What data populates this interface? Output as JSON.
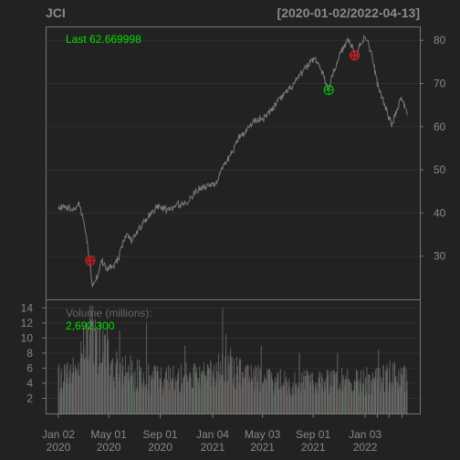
{
  "symbol": "JCI",
  "date_range": "[2020-01-02/2022-04-13]",
  "last_label": "Last 62.669998",
  "volume_label": "Volume (millions):",
  "volume_value": "2,692,300",
  "colors": {
    "background": "#222222",
    "price_line": "#7a7a7a",
    "volume_bar": "#666666",
    "up_marker": "#00c800",
    "down_marker": "#d02020",
    "label_green": "#00e000",
    "axis_text": "#888888"
  },
  "chart_data": [
    {
      "type": "line",
      "title": "JCI",
      "subtitle": "[2020-01-02/2022-04-13]",
      "ylim": [
        20,
        83
      ],
      "yticks": [
        30,
        40,
        50,
        60,
        70,
        80
      ],
      "xticks": [
        {
          "date": "2020-01-02",
          "line1": "Jan 02",
          "line2": "2020"
        },
        {
          "date": "2020-05-01",
          "line1": "May 01",
          "line2": "2020"
        },
        {
          "date": "2020-09-01",
          "line1": "Sep 01",
          "line2": "2020"
        },
        {
          "date": "2021-01-04",
          "line1": "Jan 04",
          "line2": "2021"
        },
        {
          "date": "2021-05-03",
          "line1": "May 03",
          "line2": "2021"
        },
        {
          "date": "2021-09-01",
          "line1": "Sep 01",
          "line2": "2021"
        },
        {
          "date": "2022-01-03",
          "line1": "Jan 03",
          "line2": "2022"
        }
      ],
      "x_start": "2020-01-02",
      "x_end": "2022-04-13",
      "grid": true,
      "series": [
        {
          "points": [
            [
              "2020-01-02",
              41
            ],
            [
              "2020-01-20",
              41.5
            ],
            [
              "2020-02-05",
              40.5
            ],
            [
              "2020-02-20",
              42.5
            ],
            [
              "2020-03-05",
              37
            ],
            [
              "2020-03-16",
              29
            ],
            [
              "2020-03-23",
              23.5
            ],
            [
              "2020-04-02",
              25
            ],
            [
              "2020-04-15",
              29
            ],
            [
              "2020-04-25",
              27
            ],
            [
              "2020-05-05",
              27.5
            ],
            [
              "2020-05-15",
              28
            ],
            [
              "2020-05-26",
              30
            ],
            [
              "2020-06-10",
              35
            ],
            [
              "2020-06-25",
              33.5
            ],
            [
              "2020-07-10",
              36
            ],
            [
              "2020-07-25",
              38
            ],
            [
              "2020-08-10",
              40
            ],
            [
              "2020-08-25",
              41.5
            ],
            [
              "2020-09-10",
              41
            ],
            [
              "2020-09-25",
              40.5
            ],
            [
              "2020-10-10",
              42
            ],
            [
              "2020-10-25",
              42
            ],
            [
              "2020-11-09",
              43
            ],
            [
              "2020-11-25",
              45
            ],
            [
              "2020-12-10",
              46
            ],
            [
              "2020-12-28",
              46.5
            ],
            [
              "2021-01-12",
              47
            ],
            [
              "2021-01-27",
              50
            ],
            [
              "2021-02-10",
              52.5
            ],
            [
              "2021-02-25",
              55
            ],
            [
              "2021-03-10",
              58
            ],
            [
              "2021-03-25",
              59
            ],
            [
              "2021-04-10",
              61
            ],
            [
              "2021-04-25",
              62
            ],
            [
              "2021-05-10",
              62
            ],
            [
              "2021-05-25",
              64
            ],
            [
              "2021-06-10",
              66
            ],
            [
              "2021-06-25",
              67.5
            ],
            [
              "2021-07-10",
              69
            ],
            [
              "2021-07-25",
              71
            ],
            [
              "2021-08-10",
              73
            ],
            [
              "2021-08-25",
              75
            ],
            [
              "2021-09-05",
              76
            ],
            [
              "2021-09-15",
              74
            ],
            [
              "2021-09-25",
              72
            ],
            [
              "2021-10-01",
              70
            ],
            [
              "2021-10-08",
              68.5
            ],
            [
              "2021-10-20",
              73
            ],
            [
              "2021-11-05",
              77
            ],
            [
              "2021-11-17",
              79
            ],
            [
              "2021-11-25",
              80.5
            ],
            [
              "2021-12-05",
              78
            ],
            [
              "2021-12-12",
              76
            ],
            [
              "2021-12-22",
              79
            ],
            [
              "2022-01-03",
              81
            ],
            [
              "2022-01-12",
              79
            ],
            [
              "2022-01-22",
              75
            ],
            [
              "2022-02-01",
              70
            ],
            [
              "2022-02-12",
              67
            ],
            [
              "2022-02-25",
              63
            ],
            [
              "2022-03-07",
              60.5
            ],
            [
              "2022-03-17",
              63
            ],
            [
              "2022-03-28",
              66.5
            ],
            [
              "2022-04-06",
              65
            ],
            [
              "2022-04-13",
              62.67
            ]
          ]
        }
      ],
      "markers": [
        {
          "date": "2020-03-18",
          "value": 29,
          "kind": "sell"
        },
        {
          "date": "2021-10-08",
          "value": 68.5,
          "kind": "buy"
        },
        {
          "date": "2021-12-09",
          "value": 76.5,
          "kind": "sell"
        }
      ]
    },
    {
      "type": "bar",
      "title": "Volume (millions):",
      "ylim": [
        0,
        15
      ],
      "yticks": [
        2,
        4,
        6,
        8,
        10,
        12,
        14
      ],
      "volume_profile": [
        [
          "2020-01-02",
          4.5
        ],
        [
          "2020-02-20",
          5.5
        ],
        [
          "2020-03-10",
          10
        ],
        [
          "2020-03-25",
          11
        ],
        [
          "2020-04-15",
          8
        ],
        [
          "2020-05-10",
          6
        ],
        [
          "2020-06-10",
          5.5
        ],
        [
          "2020-07-20",
          5
        ],
        [
          "2020-09-01",
          4.5
        ],
        [
          "2020-10-15",
          4.5
        ],
        [
          "2020-12-01",
          5
        ],
        [
          "2021-01-15",
          5.5
        ],
        [
          "2021-02-15",
          6.5
        ],
        [
          "2021-03-15",
          5
        ],
        [
          "2021-05-01",
          4.5
        ],
        [
          "2021-07-01",
          4
        ],
        [
          "2021-09-01",
          4
        ],
        [
          "2021-10-15",
          4.5
        ],
        [
          "2021-12-15",
          4
        ],
        [
          "2022-02-01",
          4.5
        ],
        [
          "2022-03-15",
          5
        ],
        [
          "2022-04-13",
          4.5
        ]
      ],
      "spikes": [
        [
          "2020-03-12",
          12
        ],
        [
          "2020-03-20",
          12.5
        ],
        [
          "2020-04-01",
          11.5
        ],
        [
          "2020-04-28",
          12
        ],
        [
          "2020-05-27",
          11
        ],
        [
          "2020-07-30",
          12
        ],
        [
          "2020-10-30",
          9
        ],
        [
          "2021-01-28",
          14
        ],
        [
          "2021-02-05",
          10.5
        ],
        [
          "2021-04-30",
          9
        ],
        [
          "2021-07-30",
          8
        ],
        [
          "2021-10-29",
          8
        ],
        [
          "2022-02-04",
          8.5
        ]
      ],
      "last_value": 2.6923
    }
  ]
}
